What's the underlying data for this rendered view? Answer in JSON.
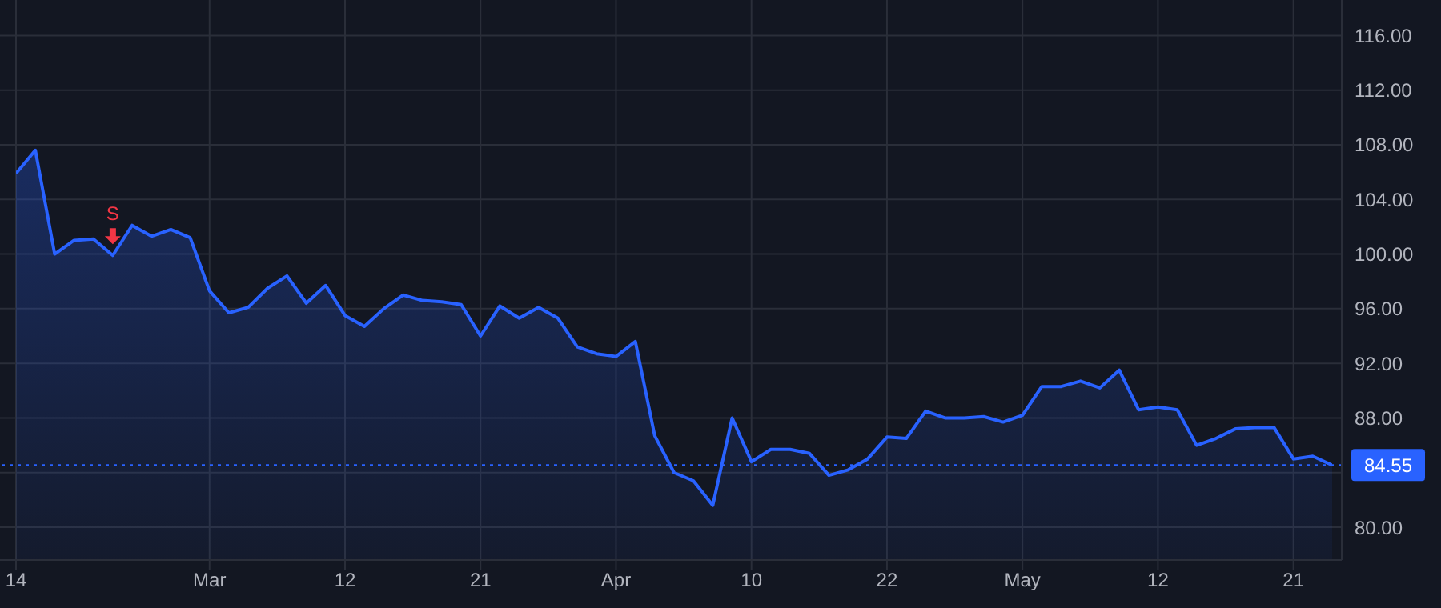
{
  "chart_data": {
    "type": "area",
    "categories": [
      "14",
      null,
      null,
      null,
      null,
      null,
      null,
      null,
      null,
      null,
      "Mar",
      null,
      null,
      null,
      null,
      null,
      null,
      "12",
      null,
      null,
      null,
      null,
      null,
      null,
      "21",
      null,
      null,
      null,
      null,
      null,
      null,
      "Apr",
      null,
      null,
      null,
      null,
      null,
      null,
      "10",
      null,
      null,
      null,
      null,
      null,
      null,
      "22",
      null,
      null,
      null,
      null,
      null,
      null,
      "May",
      null,
      null,
      null,
      null,
      null,
      null,
      "12",
      null,
      null,
      null,
      null,
      null,
      null,
      "21",
      null,
      null
    ],
    "series": [
      {
        "color": "#2962ff",
        "values": [
          105.9,
          107.6,
          100,
          101,
          101.1,
          99.9,
          102.1,
          101.3,
          101.8,
          101.2,
          97.3,
          95.7,
          96.1,
          97.5,
          98.4,
          96.4,
          97.7,
          95.5,
          94.7,
          96,
          97,
          96.6,
          96.5,
          96.3,
          94,
          96.2,
          95.3,
          96.1,
          95.3,
          93.2,
          92.7,
          92.5,
          93.6,
          86.7,
          84,
          83.4,
          81.6,
          88,
          84.8,
          85.7,
          85.7,
          85.4,
          83.8,
          84.2,
          85,
          86.6,
          86.5,
          88.5,
          88,
          88,
          88.1,
          87.7,
          88.2,
          90.3,
          90.3,
          90.7,
          90.2,
          91.5,
          88.6,
          88.8,
          88.6,
          86,
          86.5,
          87.2,
          87.3,
          87.3,
          85,
          85.2,
          84.55
        ]
      }
    ],
    "ylim": [
      77.6,
      118.6
    ],
    "yticks": [
      {
        "value": 80,
        "label": "80.00"
      },
      {
        "value": 84,
        "label": null
      },
      {
        "value": 88,
        "label": "88.00"
      },
      {
        "value": 92,
        "label": "92.00"
      },
      {
        "value": 96,
        "label": "96.00"
      },
      {
        "value": 100,
        "label": "100.00"
      },
      {
        "value": 104,
        "label": "104.00"
      },
      {
        "value": 108,
        "label": "108.00"
      },
      {
        "value": 112,
        "label": "112.00"
      },
      {
        "value": 116,
        "label": "116.00"
      }
    ],
    "grid": true,
    "ref_lines": [
      {
        "axis": "y",
        "value": 84.55,
        "label": "84.55",
        "color": "#2962ff",
        "line_style": "dotted"
      }
    ],
    "annotations": [
      {
        "text": "S",
        "y": 99.9
      }
    ]
  }
}
